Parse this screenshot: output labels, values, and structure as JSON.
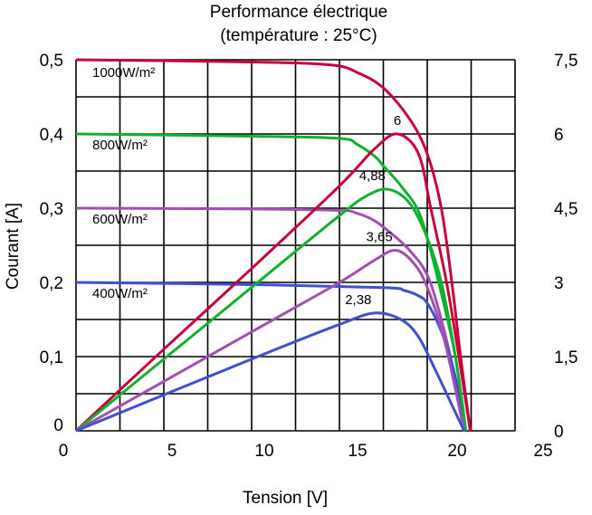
{
  "chart_data": {
    "type": "line",
    "title": "Performance électrique",
    "subtitle": "(température : 25°C)",
    "xlabel": "Tension [V]",
    "ylabel": "Courant [A]",
    "y2label": "",
    "xlim": [
      0,
      25
    ],
    "ylim": [
      0,
      0.5
    ],
    "y2lim": [
      0,
      7.5
    ],
    "grid": true,
    "x_ticks": [
      "0",
      "5",
      "10",
      "15",
      "20",
      "25"
    ],
    "y_ticks": [
      "0",
      "0,1",
      "0,2",
      "0,3",
      "0,4",
      "0,5"
    ],
    "y2_ticks": [
      "0",
      "1,5",
      "3",
      "4,5",
      "6",
      "7,5"
    ],
    "series": [
      {
        "name": "1000W/m²",
        "kind": "current",
        "axis": "left",
        "color": "#c8003c",
        "points": [
          [
            0,
            0.5
          ],
          [
            10,
            0.497
          ],
          [
            14.5,
            0.493
          ],
          [
            16,
            0.483
          ],
          [
            17.5,
            0.462
          ],
          [
            19,
            0.42
          ],
          [
            20,
            0.373
          ],
          [
            20.8,
            0.3
          ],
          [
            21.4,
            0.2
          ],
          [
            21.9,
            0.1
          ],
          [
            22.45,
            0
          ]
        ]
      },
      {
        "name": "800W/m²",
        "kind": "current",
        "axis": "left",
        "color": "#10b030",
        "points": [
          [
            0,
            0.4
          ],
          [
            10,
            0.397
          ],
          [
            15,
            0.394
          ],
          [
            16,
            0.386
          ],
          [
            17,
            0.37
          ],
          [
            17.5,
            0.357
          ],
          [
            18.5,
            0.33
          ],
          [
            19.6,
            0.29
          ],
          [
            20.65,
            0.2
          ],
          [
            21.6,
            0.1
          ],
          [
            22.2,
            0
          ]
        ]
      },
      {
        "name": "600W/m²",
        "kind": "current",
        "axis": "left",
        "color": "#a050b0",
        "points": [
          [
            0,
            0.3
          ],
          [
            10,
            0.299
          ],
          [
            15,
            0.297
          ],
          [
            16,
            0.293
          ],
          [
            17,
            0.283
          ],
          [
            18,
            0.265
          ],
          [
            19,
            0.243
          ],
          [
            20,
            0.21
          ],
          [
            20.8,
            0.15
          ],
          [
            21.5,
            0.08
          ],
          [
            22.1,
            0
          ]
        ]
      },
      {
        "name": "400W/m²",
        "kind": "current",
        "axis": "left",
        "color": "#4050d0",
        "points": [
          [
            0,
            0.2
          ],
          [
            10,
            0.197
          ],
          [
            17.5,
            0.193
          ],
          [
            18.7,
            0.189
          ],
          [
            19.5,
            0.182
          ],
          [
            20,
            0.172
          ],
          [
            20.7,
            0.14
          ],
          [
            21.3,
            0.1
          ],
          [
            21.8,
            0.05
          ],
          [
            22.1,
            0
          ]
        ]
      },
      {
        "name": "P 1000W/m²",
        "kind": "power",
        "axis": "right",
        "color": "#c8003c",
        "peak_label": "6",
        "peak": [
          18.3,
          6
        ],
        "points": [
          [
            0,
            0
          ],
          [
            5,
            1.65
          ],
          [
            10,
            3.28
          ],
          [
            15,
            4.95
          ],
          [
            17,
            5.7
          ],
          [
            18.3,
            6
          ],
          [
            19.5,
            5.6
          ],
          [
            20.2,
            4.5
          ],
          [
            21.1,
            3
          ],
          [
            21.8,
            1.5
          ],
          [
            22.45,
            0
          ]
        ]
      },
      {
        "name": "P 800W/m²",
        "kind": "power",
        "axis": "right",
        "color": "#10b030",
        "peak_label": "4,88",
        "peak": [
          17.8,
          4.88
        ],
        "points": [
          [
            0,
            0
          ],
          [
            5,
            1.45
          ],
          [
            10,
            2.9
          ],
          [
            15,
            4.35
          ],
          [
            16.6,
            4.76
          ],
          [
            17.8,
            4.88
          ],
          [
            19,
            4.6
          ],
          [
            20,
            3.9
          ],
          [
            20.8,
            3
          ],
          [
            21.6,
            1.5
          ],
          [
            22.2,
            0
          ]
        ]
      },
      {
        "name": "P 600W/m²",
        "kind": "power",
        "axis": "right",
        "color": "#a050b0",
        "peak_label": "3,65",
        "peak": [
          18.2,
          3.65
        ],
        "points": [
          [
            0,
            0
          ],
          [
            10,
            2.0
          ],
          [
            15,
            3.0
          ],
          [
            17,
            3.45
          ],
          [
            18.2,
            3.65
          ],
          [
            19.2,
            3.4
          ],
          [
            20,
            2.9
          ],
          [
            21,
            1.8
          ],
          [
            22.1,
            0
          ]
        ]
      },
      {
        "name": "P 400W/m²",
        "kind": "power",
        "axis": "right",
        "color": "#4050d0",
        "peak_label": "2,38",
        "peak": [
          17,
          2.38
        ],
        "points": [
          [
            0,
            0
          ],
          [
            10,
            1.45
          ],
          [
            15,
            2.15
          ],
          [
            17,
            2.38
          ],
          [
            18.5,
            2.25
          ],
          [
            19.5,
            1.9
          ],
          [
            20.5,
            1.2
          ],
          [
            21.5,
            0.45
          ],
          [
            22.1,
            0
          ]
        ]
      }
    ],
    "annotations": [
      "1000W/m²",
      "800W/m²",
      "600W/m²",
      "400W/m²"
    ]
  }
}
